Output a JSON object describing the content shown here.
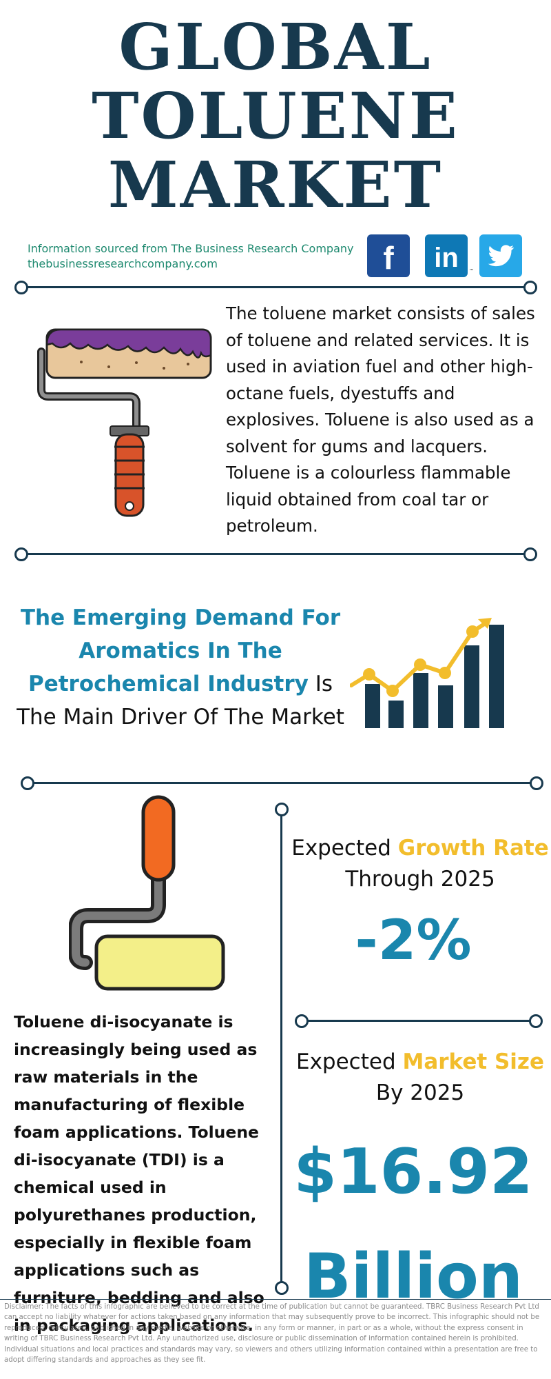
{
  "header": {
    "title_line1": "GLOBAL",
    "title_line2": "TOLUENE",
    "title_line3": "MARKET"
  },
  "source": {
    "line1": "Information sourced from The Business Research Company",
    "line2": "thebusinessresearchcompany.com"
  },
  "social": {
    "facebook_icon": "facebook-icon",
    "linkedin_icon": "linkedin-icon",
    "twitter_icon": "twitter-icon",
    "facebook_color": "#1f4e97",
    "linkedin_color": "#0e78b5",
    "twitter_color": "#27a8e8",
    "linkedin_tm": "™"
  },
  "intro": {
    "text": "The toluene market consists of sales of toluene and related services. It is used in aviation fuel and other high-octane fuels, dyestuffs and explosives. Toluene is also used as a solvent for gums and lacquers. Toluene is a colourless flammable liquid obtained from coal tar or petroleum.",
    "icon": "paint-roller-icon"
  },
  "driver": {
    "highlight": "The Emerging Demand For Aromatics In The Petrochemical Industry",
    "rest": " Is The Main Driver Of The Market",
    "icon": "growth-bar-chart-icon",
    "accent_color": "#1a86ad",
    "chart_accent": "#f2bd2c"
  },
  "growth": {
    "prefix": "Expected ",
    "highlight": "Growth Rate",
    "suffix": "Through 2025",
    "value": "-2%"
  },
  "market_size": {
    "prefix": "Expected ",
    "highlight": "Market Size",
    "suffix": "By 2025",
    "value_line1": "$16.92",
    "value_line2": "Billion"
  },
  "tdi": {
    "text": "Toluene di-isocyanate is increasingly being used as raw materials in the manufacturing of flexible foam applications. Toluene di-isocyanate (TDI) is a chemical used in polyurethanes production, especially in flexible foam applications such as furniture, bedding and also in packaging applications.",
    "icon": "yellow-paint-roller-icon"
  },
  "disclaimer": "Disclaimer: The facts of this infographic are believed to be correct at the time of publication but cannot be guaranteed. TBRC Business Research Pvt Ltd can accept no liability whatever for actions taken based on any information that may subsequently prove to be incorrect. This infographic should not be reproduced, reirculated, published in any media, website or otherwise, in any form or manner, in part or as a whole, without the express consent in writing of TBRC Business Research Pvt Ltd. Any unauthorized use, disclosure or public dissemination of information contained herein is prohibited. Individual situations and local practices and standards may vary, so viewers and others utilizing information contained within a presentation are free to adopt differing standards and approaches as they see fit."
}
